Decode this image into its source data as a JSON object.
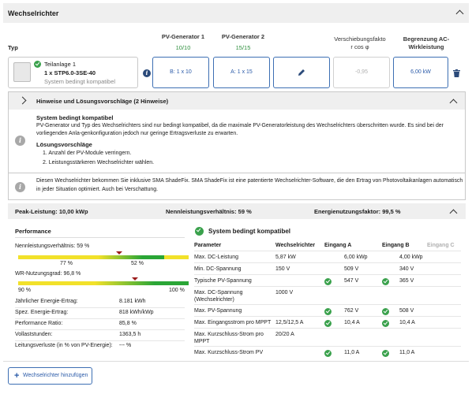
{
  "header": {
    "title": "Wechselrichter"
  },
  "columns": {
    "typ": "Typ",
    "pv1": "PV-Generator 1",
    "pv1_value": "10/10",
    "pv2": "PV-Generator 2",
    "pv2_value": "15/15",
    "cosphi_l1": "Verschiebungsfakto",
    "cosphi_l2": "r cos φ",
    "limit_l1": "Begrenzung AC-",
    "limit_l2": "Wirkleistung"
  },
  "inverter": {
    "line1": "Teilanlage 1",
    "line2": "1 x STP6.0-3SE-40",
    "line3": "System bedingt kompatibel",
    "input_a": "B: 1 x 10",
    "input_b": "A: 1 x 15",
    "cosphi": "-0,95",
    "limit": "6,00 kW"
  },
  "hints": {
    "title": "Hinweise und Lösungsvorschläge (2 Hinweise)",
    "h1_title": "System bedingt kompatibel",
    "h1_text1": "PV-Generator und Typ des Wechselrichters sind nur bedingt kompatibel, da die maximale PV-Generatorleistung des Wechselrichters überschritten wurde. Es sind bei der",
    "h1_text2": "vorliegenden Anla-genkonfiguration jedoch nur geringe Ertragsverluste zu erwarten.",
    "h1_sub": "Lösungsvorschläge",
    "h1_item1": "1.  Anzahl der PV-Module verringern.",
    "h1_item2": "2.  Leistungsstärkeren Wechselrichter wählen.",
    "h2_text1": "Diesen Wechselrichter bekommen Sie inklusive SMA ShadeFix. SMA ShadeFix ist eine patentierte Wechselrichter-Software, die den Ertrag von Photovoltaikanlagen automatisch",
    "h2_text2": "in jeder Situation optimiert. Auch bei Verschattung."
  },
  "summary": {
    "peak": "Peak-Leistung: 10,00 kWp",
    "ratio": "Nennleistungsverhältnis: 59 %",
    "factor": "Energienutzungsfaktor: 99,5 %"
  },
  "performance": {
    "title": "Performance",
    "nlv_label": "Nennleistungsverhältnis: 59 %",
    "nlv_value": 0.59,
    "nlv_tick_left": "77 %",
    "nlv_tick_right": "52 %",
    "wr_label": "WR-Nutzungsgrad: 96,8 %",
    "wr_value": 0.968,
    "wr_tick_left": "90 %",
    "wr_tick_right": "100 %",
    "rows": [
      {
        "label": "Jährlicher Energie-Ertrag:",
        "value": "8.181 kWh"
      },
      {
        "label": "Spez. Energie-Ertrag:",
        "value": "818 kWh/kWp"
      },
      {
        "label": "Performance Ratio:",
        "value": "85,8 %"
      },
      {
        "label": "Vollaststunden:",
        "value": "1363,5  h"
      },
      {
        "label": "Leitungsverluste (in % von PV-Energie):",
        "value": "--- %"
      }
    ]
  },
  "compat": {
    "title": "System bedingt kompatibel",
    "headers": [
      "Parameter",
      "Wechselrichter",
      "Eingang A",
      "Eingang B",
      "Eingang C"
    ],
    "rows": [
      {
        "p": "Max. DC-Leistung",
        "w": "5,87 kW",
        "a": "6,00 kWp",
        "b": "4,00 kWp",
        "ca": false,
        "cb": false
      },
      {
        "p": "Min. DC-Spannung",
        "w": "150 V",
        "a": "509 V",
        "b": "340 V",
        "ca": false,
        "cb": false
      },
      {
        "p": "Typische PV-Spannung",
        "w": "",
        "a": "547 V",
        "b": "365 V",
        "ca": true,
        "cb": true
      },
      {
        "p": "Max. DC-Spannung",
        "p2": "(Wechselrichter)",
        "w": "1000 V",
        "a": "",
        "b": "",
        "ca": false,
        "cb": false
      },
      {
        "p": "Max. PV-Spannung",
        "w": "",
        "a": "762 V",
        "b": "508 V",
        "ca": true,
        "cb": true
      },
      {
        "p": "Max. Eingangsstrom pro MPPT",
        "w": "12,5/12,5 A",
        "a": "10,4 A",
        "b": "10,4 A",
        "ca": true,
        "cb": true
      },
      {
        "p": "Max. Kurzschluss-Strom pro",
        "p2": "MPPT",
        "w": "20/20 A",
        "a": "",
        "b": "",
        "ca": false,
        "cb": false
      },
      {
        "p": "Max. Kurzschluss-Strom PV",
        "w": "",
        "a": "11,0 A",
        "b": "11,0 A",
        "ca": true,
        "cb": true
      }
    ]
  },
  "footer": {
    "add_label": "Wechselrichter hinzufügen"
  }
}
